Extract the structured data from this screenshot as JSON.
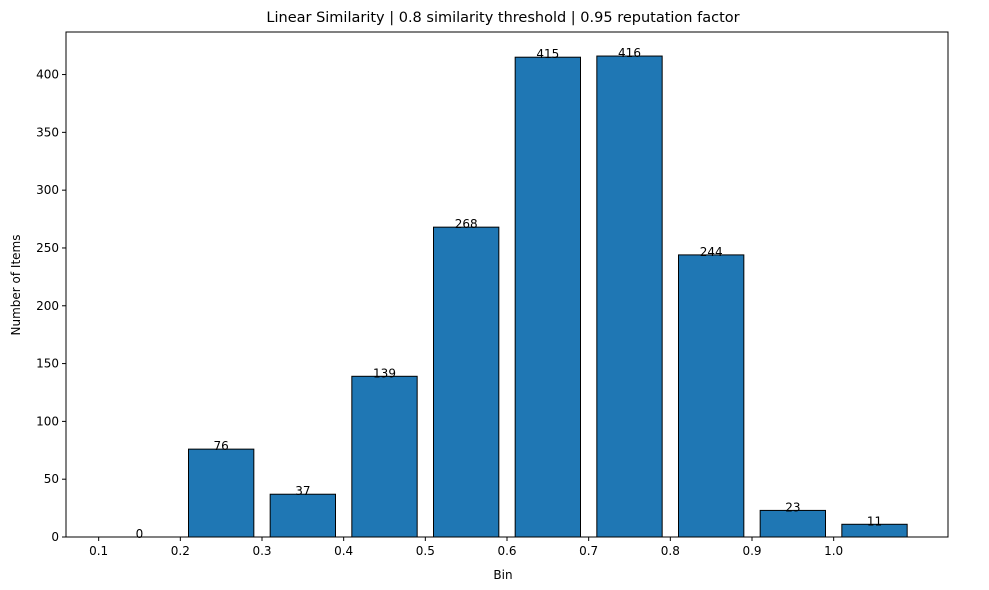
{
  "chart_data": {
    "type": "bar",
    "title": "Linear Similarity | 0.8 similarity threshold | 0.95 reputation factor",
    "xlabel": "Bin",
    "ylabel": "Number of Items",
    "bins": [
      0.1,
      0.2,
      0.3,
      0.4,
      0.5,
      0.6,
      0.7,
      0.8,
      0.9,
      1.0
    ],
    "bin_width": 0.1,
    "bar_width_fraction": 0.8,
    "values": [
      0,
      76,
      37,
      139,
      268,
      415,
      416,
      244,
      23,
      11
    ],
    "x_ticks": [
      "0.1",
      "0.2",
      "0.3",
      "0.4",
      "0.5",
      "0.6",
      "0.7",
      "0.8",
      "0.9",
      "1.0"
    ],
    "y_ticks": [
      0,
      50,
      100,
      150,
      200,
      250,
      300,
      350,
      400
    ],
    "xlim": [
      0.06,
      1.14
    ],
    "ylim": [
      0,
      436.8
    ],
    "grid": false,
    "legend": "none",
    "bar_color": "#1f77b4",
    "edge_color": "#000000"
  }
}
